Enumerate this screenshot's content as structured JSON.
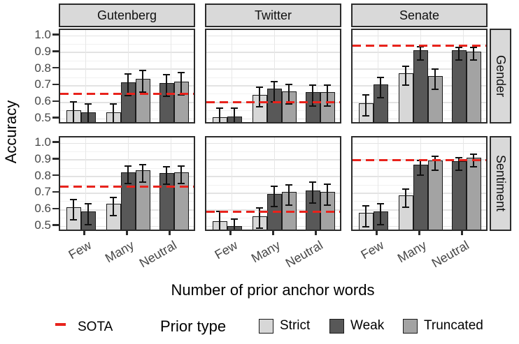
{
  "chart_data": {
    "type": "bar",
    "title": "",
    "xlabel": "Number of prior anchor words",
    "ylabel": "Accuracy",
    "facet_cols": [
      "Gutenberg",
      "Twitter",
      "Senate"
    ],
    "facet_rows": [
      "Gender",
      "Sentiment"
    ],
    "x_categories": [
      "Few",
      "Many",
      "Neutral"
    ],
    "y_tick_labels": [
      "1.0",
      "0.9",
      "0.8",
      "0.7",
      "0.6",
      "0.5"
    ],
    "y_ticks": [
      1.0,
      0.9,
      0.8,
      0.7,
      0.6,
      0.5
    ],
    "ylim_panel": [
      0.465,
      1.035
    ],
    "grid": "horizontal major+minor, vertical major at categories",
    "legend_position": "bottom",
    "sota_label": "SOTA",
    "legend_title": "Prior type",
    "series_legend": [
      "Strict",
      "Weak",
      "Truncated"
    ],
    "colors": {
      "Strict": "#d7d7d7",
      "Weak": "#585858",
      "Truncated": "#a3a3a3",
      "sota_line": "#e8231c",
      "strip_bg": "#d9d9d9",
      "error_bar": "#111111"
    },
    "panels": [
      {
        "row": "Gender",
        "col": "Gutenberg",
        "sota": 0.65,
        "bars": [
          {
            "x": "Few",
            "type": "Strict",
            "v": 0.535,
            "lo": 0.47,
            "hi": 0.605
          },
          {
            "x": "Few",
            "type": "Weak",
            "v": 0.525,
            "lo": 0.455,
            "hi": 0.59
          },
          {
            "x": "Many",
            "type": "Strict",
            "v": 0.525,
            "lo": 0.455,
            "hi": 0.59
          },
          {
            "x": "Many",
            "type": "Weak",
            "v": 0.705,
            "lo": 0.64,
            "hi": 0.77
          },
          {
            "x": "Many",
            "type": "Truncated",
            "v": 0.725,
            "lo": 0.66,
            "hi": 0.79
          },
          {
            "x": "Neutral",
            "type": "Weak",
            "v": 0.7,
            "lo": 0.635,
            "hi": 0.765
          },
          {
            "x": "Neutral",
            "type": "Truncated",
            "v": 0.71,
            "lo": 0.645,
            "hi": 0.78
          }
        ]
      },
      {
        "row": "Gender",
        "col": "Twitter",
        "sota": 0.6,
        "bars": [
          {
            "x": "Few",
            "type": "Strict",
            "v": 0.495,
            "lo": 0.43,
            "hi": 0.565
          },
          {
            "x": "Few",
            "type": "Weak",
            "v": 0.5,
            "lo": 0.435,
            "hi": 0.565
          },
          {
            "x": "Many",
            "type": "Strict",
            "v": 0.63,
            "lo": 0.575,
            "hi": 0.69
          },
          {
            "x": "Many",
            "type": "Weak",
            "v": 0.665,
            "lo": 0.605,
            "hi": 0.725
          },
          {
            "x": "Many",
            "type": "Truncated",
            "v": 0.65,
            "lo": 0.59,
            "hi": 0.71
          },
          {
            "x": "Neutral",
            "type": "Weak",
            "v": 0.645,
            "lo": 0.58,
            "hi": 0.705
          },
          {
            "x": "Neutral",
            "type": "Truncated",
            "v": 0.645,
            "lo": 0.58,
            "hi": 0.705
          }
        ]
      },
      {
        "row": "Gender",
        "col": "Senate",
        "sota": 0.94,
        "bars": [
          {
            "x": "Few",
            "type": "Strict",
            "v": 0.58,
            "lo": 0.52,
            "hi": 0.645
          },
          {
            "x": "Few",
            "type": "Weak",
            "v": 0.69,
            "lo": 0.63,
            "hi": 0.75
          },
          {
            "x": "Many",
            "type": "Strict",
            "v": 0.76,
            "lo": 0.705,
            "hi": 0.815
          },
          {
            "x": "Many",
            "type": "Weak",
            "v": 0.895,
            "lo": 0.855,
            "hi": 0.935
          },
          {
            "x": "Many",
            "type": "Truncated",
            "v": 0.74,
            "lo": 0.68,
            "hi": 0.8
          },
          {
            "x": "Neutral",
            "type": "Weak",
            "v": 0.895,
            "lo": 0.855,
            "hi": 0.93
          },
          {
            "x": "Neutral",
            "type": "Truncated",
            "v": 0.89,
            "lo": 0.855,
            "hi": 0.93
          }
        ]
      },
      {
        "row": "Sentiment",
        "col": "Gutenberg",
        "sota": 0.74,
        "bars": [
          {
            "x": "Few",
            "type": "Strict",
            "v": 0.6,
            "lo": 0.54,
            "hi": 0.66
          },
          {
            "x": "Few",
            "type": "Weak",
            "v": 0.575,
            "lo": 0.51,
            "hi": 0.635
          },
          {
            "x": "Many",
            "type": "Strict",
            "v": 0.62,
            "lo": 0.565,
            "hi": 0.675
          },
          {
            "x": "Many",
            "type": "Weak",
            "v": 0.81,
            "lo": 0.76,
            "hi": 0.865
          },
          {
            "x": "Many",
            "type": "Truncated",
            "v": 0.82,
            "lo": 0.765,
            "hi": 0.87
          },
          {
            "x": "Neutral",
            "type": "Weak",
            "v": 0.805,
            "lo": 0.755,
            "hi": 0.86
          },
          {
            "x": "Neutral",
            "type": "Truncated",
            "v": 0.81,
            "lo": 0.76,
            "hi": 0.865
          }
        ]
      },
      {
        "row": "Sentiment",
        "col": "Twitter",
        "sota": 0.59,
        "bars": [
          {
            "x": "Few",
            "type": "Strict",
            "v": 0.515,
            "lo": 0.455,
            "hi": 0.59
          },
          {
            "x": "Few",
            "type": "Weak",
            "v": 0.485,
            "lo": 0.43,
            "hi": 0.545
          },
          {
            "x": "Many",
            "type": "Strict",
            "v": 0.545,
            "lo": 0.49,
            "hi": 0.61
          },
          {
            "x": "Many",
            "type": "Weak",
            "v": 0.68,
            "lo": 0.62,
            "hi": 0.74
          },
          {
            "x": "Many",
            "type": "Truncated",
            "v": 0.69,
            "lo": 0.63,
            "hi": 0.75
          },
          {
            "x": "Neutral",
            "type": "Weak",
            "v": 0.7,
            "lo": 0.64,
            "hi": 0.765
          },
          {
            "x": "Neutral",
            "type": "Truncated",
            "v": 0.69,
            "lo": 0.63,
            "hi": 0.755
          }
        ]
      },
      {
        "row": "Sentiment",
        "col": "Senate",
        "sota": 0.9,
        "bars": [
          {
            "x": "Few",
            "type": "Strict",
            "v": 0.565,
            "lo": 0.5,
            "hi": 0.625
          },
          {
            "x": "Few",
            "type": "Weak",
            "v": 0.575,
            "lo": 0.51,
            "hi": 0.635
          },
          {
            "x": "Many",
            "type": "Strict",
            "v": 0.67,
            "lo": 0.615,
            "hi": 0.725
          },
          {
            "x": "Many",
            "type": "Weak",
            "v": 0.855,
            "lo": 0.81,
            "hi": 0.895
          },
          {
            "x": "Many",
            "type": "Truncated",
            "v": 0.88,
            "lo": 0.84,
            "hi": 0.92
          },
          {
            "x": "Neutral",
            "type": "Weak",
            "v": 0.875,
            "lo": 0.84,
            "hi": 0.915
          },
          {
            "x": "Neutral",
            "type": "Truncated",
            "v": 0.895,
            "lo": 0.86,
            "hi": 0.935
          }
        ]
      }
    ]
  }
}
